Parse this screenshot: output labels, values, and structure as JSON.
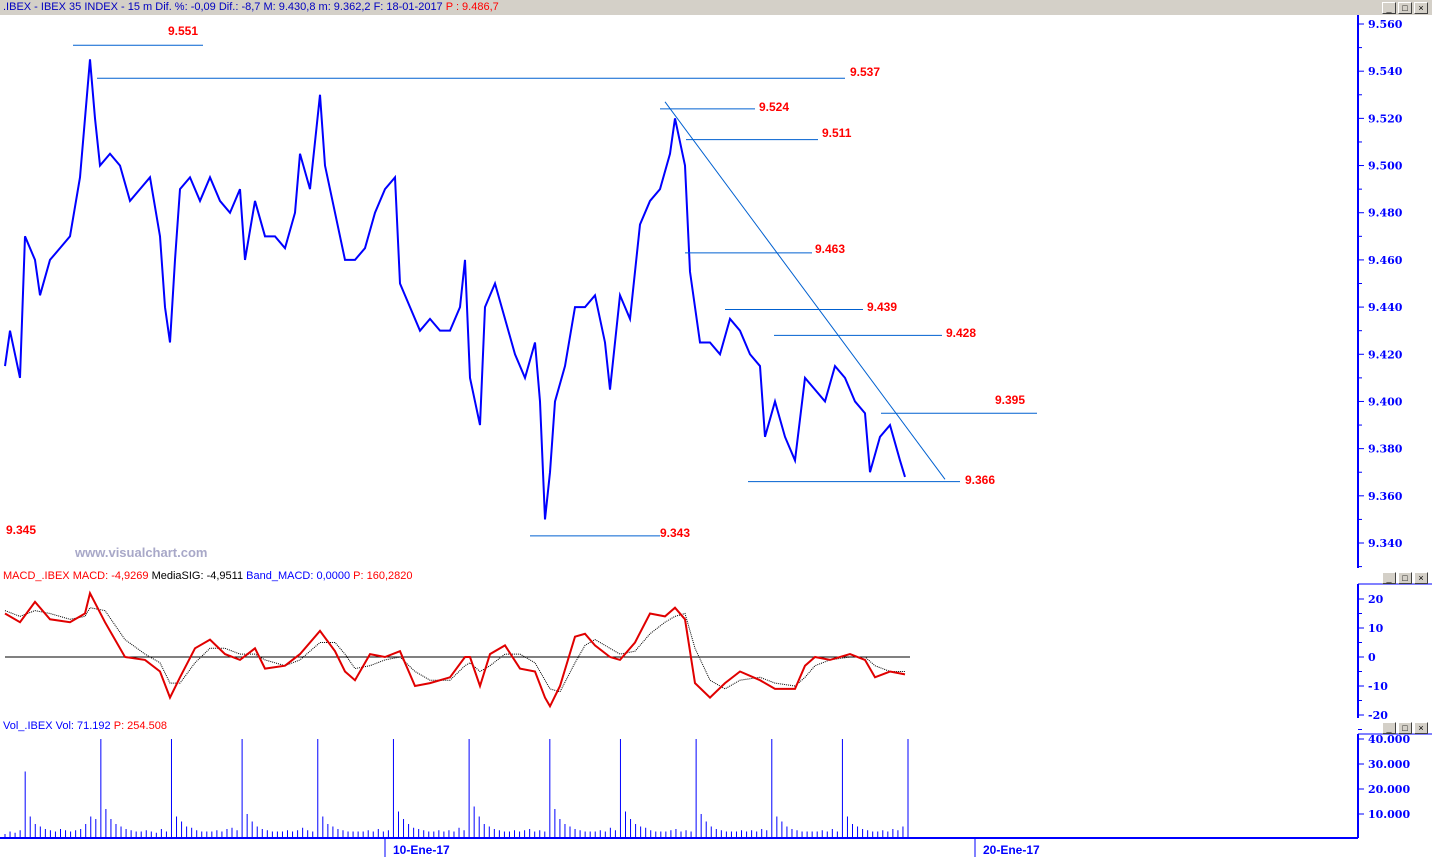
{
  "window": {
    "title_parts": {
      "symbol": ".IBEX - IBEX 35 INDEX - ",
      "period": "15 m",
      "dif_pct": "Dif. %: -0,09",
      "dif": "Dif.: -8,7",
      "max": "M: 9.430,8",
      "min": "m: 9.362,2",
      "date": "F: 18-01-2017",
      "price": "P : 9.486,7"
    },
    "buttons": [
      "_",
      "□",
      "×"
    ]
  },
  "watermark": "www.visualchart.com",
  "colors": {
    "price": "#0000ff",
    "macd": "#e00000",
    "signal": "#000000",
    "volume": "#0000ff",
    "levels": "#ff0000",
    "lines": "#0060d0"
  },
  "x_axis": {
    "labels": [
      {
        "bar": 77,
        "text": "10-Ene-17"
      },
      {
        "bar": 195,
        "text": "20-Ene-17"
      }
    ]
  },
  "chart_data": [
    {
      "type": "line",
      "name": "IBEX 35 INDEX 15 m",
      "ylim": [
        9.335,
        9.565
      ],
      "yticks": [
        "9.340",
        "9.360",
        "9.380",
        "9.400",
        "9.420",
        "9.440",
        "9.460",
        "9.480",
        "9.500",
        "9.520",
        "9.540",
        "9.560"
      ],
      "points": [
        [
          1,
          9.415
        ],
        [
          2,
          9.43
        ],
        [
          4,
          9.41
        ],
        [
          5,
          9.47
        ],
        [
          7,
          9.46
        ],
        [
          8,
          9.445
        ],
        [
          10,
          9.46
        ],
        [
          12,
          9.465
        ],
        [
          14,
          9.47
        ],
        [
          16,
          9.495
        ],
        [
          18,
          9.545
        ],
        [
          19,
          9.52
        ],
        [
          20,
          9.5
        ],
        [
          22,
          9.505
        ],
        [
          24,
          9.5
        ],
        [
          26,
          9.485
        ],
        [
          28,
          9.49
        ],
        [
          30,
          9.495
        ],
        [
          32,
          9.47
        ],
        [
          33,
          9.44
        ],
        [
          34,
          9.425
        ],
        [
          35,
          9.46
        ],
        [
          36,
          9.49
        ],
        [
          38,
          9.495
        ],
        [
          40,
          9.485
        ],
        [
          42,
          9.495
        ],
        [
          44,
          9.485
        ],
        [
          46,
          9.48
        ],
        [
          48,
          9.49
        ],
        [
          49,
          9.46
        ],
        [
          51,
          9.485
        ],
        [
          53,
          9.47
        ],
        [
          55,
          9.47
        ],
        [
          57,
          9.465
        ],
        [
          59,
          9.48
        ],
        [
          60,
          9.505
        ],
        [
          62,
          9.49
        ],
        [
          64,
          9.53
        ],
        [
          65,
          9.5
        ],
        [
          67,
          9.48
        ],
        [
          69,
          9.46
        ],
        [
          71,
          9.46
        ],
        [
          73,
          9.465
        ],
        [
          75,
          9.48
        ],
        [
          77,
          9.49
        ],
        [
          79,
          9.495
        ],
        [
          80,
          9.45
        ],
        [
          82,
          9.44
        ],
        [
          84,
          9.43
        ],
        [
          86,
          9.435
        ],
        [
          88,
          9.43
        ],
        [
          90,
          9.43
        ],
        [
          92,
          9.44
        ],
        [
          93,
          9.46
        ],
        [
          94,
          9.41
        ],
        [
          96,
          9.39
        ],
        [
          97,
          9.44
        ],
        [
          99,
          9.45
        ],
        [
          101,
          9.435
        ],
        [
          103,
          9.42
        ],
        [
          105,
          9.41
        ],
        [
          107,
          9.425
        ],
        [
          108,
          9.4
        ],
        [
          109,
          9.35
        ],
        [
          110,
          9.37
        ],
        [
          111,
          9.4
        ],
        [
          113,
          9.415
        ],
        [
          115,
          9.44
        ],
        [
          117,
          9.44
        ],
        [
          119,
          9.445
        ],
        [
          121,
          9.425
        ],
        [
          122,
          9.405
        ],
        [
          124,
          9.445
        ],
        [
          126,
          9.435
        ],
        [
          128,
          9.475
        ],
        [
          130,
          9.485
        ],
        [
          132,
          9.49
        ],
        [
          134,
          9.505
        ],
        [
          135,
          9.52
        ],
        [
          136,
          9.51
        ],
        [
          137,
          9.5
        ],
        [
          138,
          9.455
        ],
        [
          140,
          9.425
        ],
        [
          142,
          9.425
        ],
        [
          144,
          9.42
        ],
        [
          146,
          9.435
        ],
        [
          148,
          9.43
        ],
        [
          150,
          9.42
        ],
        [
          152,
          9.415
        ],
        [
          153,
          9.385
        ],
        [
          155,
          9.4
        ],
        [
          157,
          9.385
        ],
        [
          159,
          9.375
        ],
        [
          161,
          9.41
        ],
        [
          163,
          9.405
        ],
        [
          165,
          9.4
        ],
        [
          167,
          9.415
        ],
        [
          169,
          9.41
        ],
        [
          171,
          9.4
        ],
        [
          173,
          9.395
        ],
        [
          174,
          9.37
        ],
        [
          176,
          9.385
        ],
        [
          178,
          9.39
        ],
        [
          180,
          9.375
        ],
        [
          181,
          9.368
        ]
      ],
      "levels": [
        {
          "value": 9.551,
          "label": "9.551"
        },
        {
          "value": 9.537,
          "label": "9.537"
        },
        {
          "value": 9.524,
          "label": "9.524"
        },
        {
          "value": 9.511,
          "label": "9.511"
        },
        {
          "value": 9.463,
          "label": "9.463"
        },
        {
          "value": 9.439,
          "label": "9.439"
        },
        {
          "value": 9.428,
          "label": "9.428"
        },
        {
          "value": 9.395,
          "label": "9.395"
        },
        {
          "value": 9.366,
          "label": "9.366"
        },
        {
          "value": 9.343,
          "label": "9.343"
        },
        {
          "value": 9.345,
          "label": "9.345"
        }
      ],
      "trendline": [
        [
          133,
          9.527
        ],
        [
          189,
          9.367
        ]
      ]
    },
    {
      "type": "line",
      "header": {
        "name": "MACD_.IBEX",
        "macd": "MACD: -4,9269",
        "signal": "MediaSIG: -4,9511",
        "band": "Band_MACD: 0,0000",
        "price": "P: 160,2820"
      },
      "ylim": [
        -21,
        24
      ],
      "yticks": [
        "20",
        "10",
        "0",
        "-10",
        "-20"
      ],
      "zero_line": 0,
      "macd": [
        [
          1,
          15
        ],
        [
          4,
          12
        ],
        [
          7,
          19
        ],
        [
          10,
          13
        ],
        [
          14,
          12
        ],
        [
          17,
          15
        ],
        [
          18,
          22
        ],
        [
          21,
          12
        ],
        [
          25,
          0
        ],
        [
          29,
          -1
        ],
        [
          32,
          -5
        ],
        [
          34,
          -14
        ],
        [
          36,
          -7
        ],
        [
          39,
          3
        ],
        [
          42,
          6
        ],
        [
          45,
          1
        ],
        [
          48,
          -1
        ],
        [
          51,
          3
        ],
        [
          53,
          -4
        ],
        [
          57,
          -3
        ],
        [
          60,
          1
        ],
        [
          64,
          9
        ],
        [
          67,
          2
        ],
        [
          69,
          -5
        ],
        [
          71,
          -8
        ],
        [
          74,
          1
        ],
        [
          77,
          0
        ],
        [
          80,
          2
        ],
        [
          83,
          -10
        ],
        [
          86,
          -9
        ],
        [
          90,
          -7
        ],
        [
          93,
          0
        ],
        [
          94,
          0
        ],
        [
          96,
          -10
        ],
        [
          98,
          1
        ],
        [
          101,
          4
        ],
        [
          104,
          -4
        ],
        [
          107,
          -5
        ],
        [
          109,
          -14
        ],
        [
          110,
          -17
        ],
        [
          112,
          -10
        ],
        [
          115,
          7
        ],
        [
          117,
          8
        ],
        [
          119,
          4
        ],
        [
          122,
          0
        ],
        [
          124,
          -1
        ],
        [
          127,
          5
        ],
        [
          130,
          15
        ],
        [
          133,
          14
        ],
        [
          135,
          17
        ],
        [
          137,
          13
        ],
        [
          139,
          -9
        ],
        [
          142,
          -14
        ],
        [
          145,
          -9
        ],
        [
          148,
          -5
        ],
        [
          152,
          -8
        ],
        [
          155,
          -11
        ],
        [
          159,
          -11
        ],
        [
          161,
          -3
        ],
        [
          163,
          0
        ],
        [
          166,
          -1
        ],
        [
          170,
          1
        ],
        [
          173,
          -1
        ],
        [
          175,
          -7
        ],
        [
          178,
          -5
        ],
        [
          181,
          -6
        ]
      ],
      "signal": [
        [
          1,
          16
        ],
        [
          4,
          14
        ],
        [
          7,
          16
        ],
        [
          10,
          15
        ],
        [
          14,
          13
        ],
        [
          17,
          14
        ],
        [
          18,
          17
        ],
        [
          21,
          16
        ],
        [
          25,
          6
        ],
        [
          29,
          1
        ],
        [
          32,
          -2
        ],
        [
          34,
          -9
        ],
        [
          36,
          -9
        ],
        [
          39,
          -2
        ],
        [
          42,
          3
        ],
        [
          45,
          3
        ],
        [
          48,
          1
        ],
        [
          51,
          1
        ],
        [
          53,
          -1
        ],
        [
          57,
          -3
        ],
        [
          60,
          -1
        ],
        [
          64,
          5
        ],
        [
          67,
          5
        ],
        [
          69,
          1
        ],
        [
          71,
          -4
        ],
        [
          74,
          -3
        ],
        [
          77,
          -1
        ],
        [
          80,
          0
        ],
        [
          83,
          -5
        ],
        [
          86,
          -8
        ],
        [
          90,
          -8
        ],
        [
          93,
          -3
        ],
        [
          94,
          -2
        ],
        [
          96,
          -5
        ],
        [
          98,
          -3
        ],
        [
          101,
          1
        ],
        [
          104,
          1
        ],
        [
          107,
          -2
        ],
        [
          109,
          -8
        ],
        [
          110,
          -11
        ],
        [
          112,
          -12
        ],
        [
          115,
          -2
        ],
        [
          117,
          4
        ],
        [
          119,
          6
        ],
        [
          122,
          3
        ],
        [
          124,
          1
        ],
        [
          127,
          2
        ],
        [
          130,
          8
        ],
        [
          133,
          12
        ],
        [
          135,
          14
        ],
        [
          137,
          15
        ],
        [
          139,
          3
        ],
        [
          142,
          -8
        ],
        [
          145,
          -11
        ],
        [
          148,
          -8
        ],
        [
          152,
          -7
        ],
        [
          155,
          -9
        ],
        [
          159,
          -10
        ],
        [
          161,
          -7
        ],
        [
          163,
          -3
        ],
        [
          166,
          -1
        ],
        [
          170,
          0
        ],
        [
          173,
          0
        ],
        [
          175,
          -3
        ],
        [
          178,
          -5
        ],
        [
          181,
          -5
        ]
      ]
    },
    {
      "type": "bar",
      "header": {
        "name": "Vol_.IBEX",
        "vol": "Vol: 71.192",
        "price": "P: 254.508"
      },
      "ylim": [
        0,
        42000
      ],
      "yticks": [
        "40.000",
        "30.000",
        "20.000",
        "10.000"
      ],
      "values": [
        2000,
        3000,
        2500,
        3500,
        27000,
        9000,
        6000,
        5000,
        4000,
        3500,
        3000,
        4000,
        3500,
        3000,
        3500,
        4000,
        6000,
        9000,
        8000,
        40000,
        12000,
        8000,
        6000,
        5000,
        4000,
        3500,
        3000,
        3000,
        3500,
        3000,
        2500,
        4000,
        3000,
        40000,
        9000,
        7000,
        5000,
        4500,
        3500,
        3000,
        3000,
        3000,
        3500,
        3000,
        4000,
        4500,
        3500,
        40000,
        10000,
        7000,
        5000,
        4000,
        3500,
        3000,
        3000,
        3000,
        3500,
        3000,
        3500,
        4500,
        3500,
        3000,
        40000,
        9000,
        6000,
        5000,
        4000,
        3500,
        3000,
        3000,
        3000,
        3000,
        3500,
        3000,
        4000,
        3000,
        3500,
        40000,
        11000,
        8000,
        6000,
        4500,
        4000,
        3500,
        3000,
        3000,
        3500,
        3000,
        3500,
        3000,
        4500,
        3500,
        40000,
        13000,
        9000,
        6000,
        5000,
        4000,
        3500,
        3000,
        3000,
        3500,
        3000,
        3500,
        4000,
        3000,
        3500,
        3000,
        40000,
        12000,
        8000,
        6000,
        5000,
        4000,
        3500,
        3000,
        3000,
        3000,
        3500,
        3000,
        4500,
        3500,
        40000,
        11000,
        8000,
        6000,
        5000,
        4500,
        3500,
        3000,
        3000,
        3000,
        3500,
        4000,
        3000,
        3500,
        3000,
        40000,
        10000,
        7000,
        5000,
        4000,
        3500,
        3000,
        3000,
        3000,
        3500,
        3000,
        3500,
        3000,
        4000,
        3500,
        40000,
        9000,
        7000,
        5000,
        4000,
        3500,
        3000,
        3000,
        3000,
        3000,
        3500,
        3000,
        4000,
        3000,
        40000,
        9000,
        6000,
        5000,
        4000,
        3500,
        3000,
        3000,
        3500,
        3000,
        4000,
        3500,
        5000,
        40000
      ]
    }
  ]
}
